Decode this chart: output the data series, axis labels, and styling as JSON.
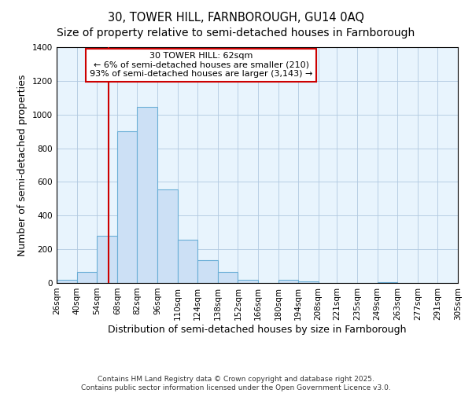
{
  "title": "30, TOWER HILL, FARNBOROUGH, GU14 0AQ",
  "subtitle": "Size of property relative to semi-detached houses in Farnborough",
  "xlabel": "Distribution of semi-detached houses by size in Farnborough",
  "ylabel": "Number of semi-detached properties",
  "bins": [
    26,
    40,
    54,
    68,
    82,
    96,
    110,
    124,
    138,
    152,
    166,
    180,
    194,
    208,
    221,
    235,
    249,
    263,
    277,
    291,
    305
  ],
  "bar_heights": [
    20,
    65,
    280,
    900,
    1045,
    555,
    255,
    135,
    65,
    20,
    0,
    20,
    10,
    0,
    0,
    0,
    5,
    0,
    0,
    0
  ],
  "bar_color": "#cce0f5",
  "bar_edge_color": "#6aaed6",
  "vline_x": 62,
  "vline_color": "#cc0000",
  "annotation_title": "30 TOWER HILL: 62sqm",
  "annotation_line2": "← 6% of semi-detached houses are smaller (210)",
  "annotation_line3": "93% of semi-detached houses are larger (3,143) →",
  "annotation_box_edge_color": "#cc0000",
  "ylim": [
    0,
    1400
  ],
  "yticks": [
    0,
    200,
    400,
    600,
    800,
    1000,
    1200,
    1400
  ],
  "tick_labels": [
    "26sqm",
    "40sqm",
    "54sqm",
    "68sqm",
    "82sqm",
    "96sqm",
    "110sqm",
    "124sqm",
    "138sqm",
    "152sqm",
    "166sqm",
    "180sqm",
    "194sqm",
    "208sqm",
    "221sqm",
    "235sqm",
    "249sqm",
    "263sqm",
    "277sqm",
    "291sqm",
    "305sqm"
  ],
  "footnote1": "Contains HM Land Registry data © Crown copyright and database right 2025.",
  "footnote2": "Contains public sector information licensed under the Open Government Licence v3.0.",
  "background_color": "#ffffff",
  "plot_bg_color": "#e8f4fd",
  "grid_color": "#b0c8e0",
  "title_fontsize": 10.5,
  "axis_label_fontsize": 9,
  "tick_fontsize": 7.5,
  "annotation_fontsize": 8,
  "footnote_fontsize": 6.5
}
